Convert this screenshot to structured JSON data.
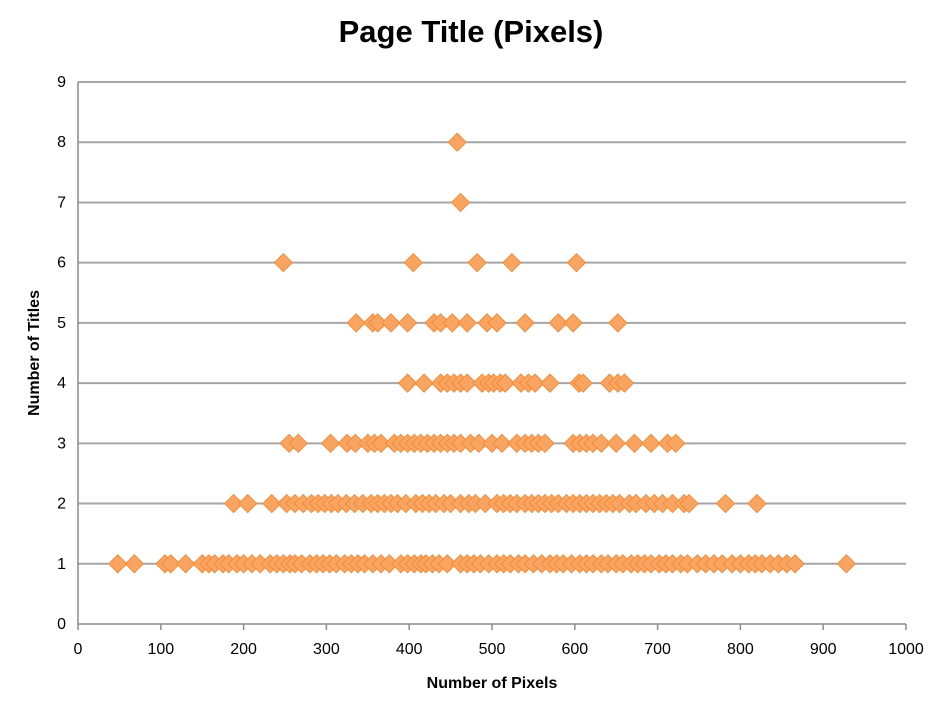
{
  "chart_data": {
    "type": "scatter",
    "title": "Page Title (Pixels)",
    "xlabel": "Number of Pixels",
    "ylabel": "Number of Titles",
    "xlim": [
      0,
      1000
    ],
    "ylim": [
      0,
      9
    ],
    "x_ticks": [
      "0",
      "100",
      "200",
      "300",
      "400",
      "500",
      "600",
      "700",
      "800",
      "900",
      "1000"
    ],
    "y_ticks": [
      "0",
      "1",
      "2",
      "3",
      "4",
      "5",
      "6",
      "7",
      "8",
      "9"
    ],
    "grid": "horizontal",
    "legend": "none",
    "marker": "diamond",
    "marker_color": "#F9A561",
    "marker_edge_color": "#F28C3A",
    "grid_color": "#A6A6A6",
    "series": [
      {
        "points": [
          [
            48,
            1
          ],
          [
            68,
            1
          ],
          [
            105,
            1
          ],
          [
            112,
            1
          ],
          [
            130,
            1
          ],
          [
            150,
            1
          ],
          [
            158,
            1
          ],
          [
            165,
            1
          ],
          [
            175,
            1
          ],
          [
            182,
            1
          ],
          [
            192,
            1
          ],
          [
            200,
            1
          ],
          [
            210,
            1
          ],
          [
            220,
            1
          ],
          [
            232,
            1
          ],
          [
            240,
            1
          ],
          [
            248,
            1
          ],
          [
            256,
            1
          ],
          [
            262,
            1
          ],
          [
            270,
            1
          ],
          [
            280,
            1
          ],
          [
            288,
            1
          ],
          [
            296,
            1
          ],
          [
            304,
            1
          ],
          [
            312,
            1
          ],
          [
            322,
            1
          ],
          [
            330,
            1
          ],
          [
            338,
            1
          ],
          [
            346,
            1
          ],
          [
            356,
            1
          ],
          [
            366,
            1
          ],
          [
            376,
            1
          ],
          [
            390,
            1
          ],
          [
            398,
            1
          ],
          [
            406,
            1
          ],
          [
            414,
            1
          ],
          [
            420,
            1
          ],
          [
            428,
            1
          ],
          [
            436,
            1
          ],
          [
            446,
            1
          ],
          [
            462,
            1
          ],
          [
            470,
            1
          ],
          [
            478,
            1
          ],
          [
            486,
            1
          ],
          [
            496,
            1
          ],
          [
            506,
            1
          ],
          [
            514,
            1
          ],
          [
            522,
            1
          ],
          [
            532,
            1
          ],
          [
            540,
            1
          ],
          [
            550,
            1
          ],
          [
            560,
            1
          ],
          [
            570,
            1
          ],
          [
            578,
            1
          ],
          [
            586,
            1
          ],
          [
            596,
            1
          ],
          [
            606,
            1
          ],
          [
            614,
            1
          ],
          [
            622,
            1
          ],
          [
            632,
            1
          ],
          [
            640,
            1
          ],
          [
            650,
            1
          ],
          [
            658,
            1
          ],
          [
            668,
            1
          ],
          [
            676,
            1
          ],
          [
            684,
            1
          ],
          [
            692,
            1
          ],
          [
            702,
            1
          ],
          [
            710,
            1
          ],
          [
            718,
            1
          ],
          [
            728,
            1
          ],
          [
            736,
            1
          ],
          [
            748,
            1
          ],
          [
            758,
            1
          ],
          [
            768,
            1
          ],
          [
            778,
            1
          ],
          [
            790,
            1
          ],
          [
            800,
            1
          ],
          [
            810,
            1
          ],
          [
            818,
            1
          ],
          [
            826,
            1
          ],
          [
            836,
            1
          ],
          [
            846,
            1
          ],
          [
            856,
            1
          ],
          [
            866,
            1
          ],
          [
            928,
            1
          ],
          [
            188,
            2
          ],
          [
            205,
            2
          ],
          [
            234,
            2
          ],
          [
            252,
            2
          ],
          [
            262,
            2
          ],
          [
            272,
            2
          ],
          [
            282,
            2
          ],
          [
            290,
            2
          ],
          [
            298,
            2
          ],
          [
            306,
            2
          ],
          [
            314,
            2
          ],
          [
            324,
            2
          ],
          [
            334,
            2
          ],
          [
            344,
            2
          ],
          [
            354,
            2
          ],
          [
            362,
            2
          ],
          [
            370,
            2
          ],
          [
            378,
            2
          ],
          [
            386,
            2
          ],
          [
            396,
            2
          ],
          [
            408,
            2
          ],
          [
            416,
            2
          ],
          [
            424,
            2
          ],
          [
            432,
            2
          ],
          [
            442,
            2
          ],
          [
            450,
            2
          ],
          [
            462,
            2
          ],
          [
            472,
            2
          ],
          [
            480,
            2
          ],
          [
            492,
            2
          ],
          [
            506,
            2
          ],
          [
            514,
            2
          ],
          [
            522,
            2
          ],
          [
            530,
            2
          ],
          [
            540,
            2
          ],
          [
            548,
            2
          ],
          [
            556,
            2
          ],
          [
            564,
            2
          ],
          [
            572,
            2
          ],
          [
            580,
            2
          ],
          [
            590,
            2
          ],
          [
            598,
            2
          ],
          [
            606,
            2
          ],
          [
            614,
            2
          ],
          [
            622,
            2
          ],
          [
            630,
            2
          ],
          [
            638,
            2
          ],
          [
            646,
            2
          ],
          [
            654,
            2
          ],
          [
            666,
            2
          ],
          [
            674,
            2
          ],
          [
            686,
            2
          ],
          [
            696,
            2
          ],
          [
            706,
            2
          ],
          [
            718,
            2
          ],
          [
            732,
            2
          ],
          [
            738,
            2
          ],
          [
            782,
            2
          ],
          [
            820,
            2
          ],
          [
            255,
            3
          ],
          [
            266,
            3
          ],
          [
            305,
            3
          ],
          [
            325,
            3
          ],
          [
            335,
            3
          ],
          [
            350,
            3
          ],
          [
            358,
            3
          ],
          [
            366,
            3
          ],
          [
            382,
            3
          ],
          [
            390,
            3
          ],
          [
            398,
            3
          ],
          [
            406,
            3
          ],
          [
            414,
            3
          ],
          [
            422,
            3
          ],
          [
            430,
            3
          ],
          [
            438,
            3
          ],
          [
            446,
            3
          ],
          [
            454,
            3
          ],
          [
            462,
            3
          ],
          [
            474,
            3
          ],
          [
            484,
            3
          ],
          [
            500,
            3
          ],
          [
            512,
            3
          ],
          [
            530,
            3
          ],
          [
            540,
            3
          ],
          [
            548,
            3
          ],
          [
            556,
            3
          ],
          [
            564,
            3
          ],
          [
            598,
            3
          ],
          [
            606,
            3
          ],
          [
            614,
            3
          ],
          [
            622,
            3
          ],
          [
            632,
            3
          ],
          [
            650,
            3
          ],
          [
            672,
            3
          ],
          [
            692,
            3
          ],
          [
            712,
            3
          ],
          [
            722,
            3
          ],
          [
            398,
            4
          ],
          [
            418,
            4
          ],
          [
            438,
            4
          ],
          [
            446,
            4
          ],
          [
            454,
            4
          ],
          [
            462,
            4
          ],
          [
            470,
            4
          ],
          [
            488,
            4
          ],
          [
            496,
            4
          ],
          [
            502,
            4
          ],
          [
            510,
            4
          ],
          [
            516,
            4
          ],
          [
            535,
            4
          ],
          [
            544,
            4
          ],
          [
            552,
            4
          ],
          [
            570,
            4
          ],
          [
            605,
            4
          ],
          [
            610,
            4
          ],
          [
            642,
            4
          ],
          [
            652,
            4
          ],
          [
            660,
            4
          ],
          [
            336,
            5
          ],
          [
            356,
            5
          ],
          [
            362,
            5
          ],
          [
            378,
            5
          ],
          [
            398,
            5
          ],
          [
            430,
            5
          ],
          [
            438,
            5
          ],
          [
            452,
            5
          ],
          [
            470,
            5
          ],
          [
            494,
            5
          ],
          [
            506,
            5
          ],
          [
            540,
            5
          ],
          [
            580,
            5
          ],
          [
            598,
            5
          ],
          [
            652,
            5
          ],
          [
            248,
            6
          ],
          [
            405,
            6
          ],
          [
            482,
            6
          ],
          [
            524,
            6
          ],
          [
            602,
            6
          ],
          [
            462,
            7
          ],
          [
            458,
            8
          ]
        ]
      }
    ]
  }
}
